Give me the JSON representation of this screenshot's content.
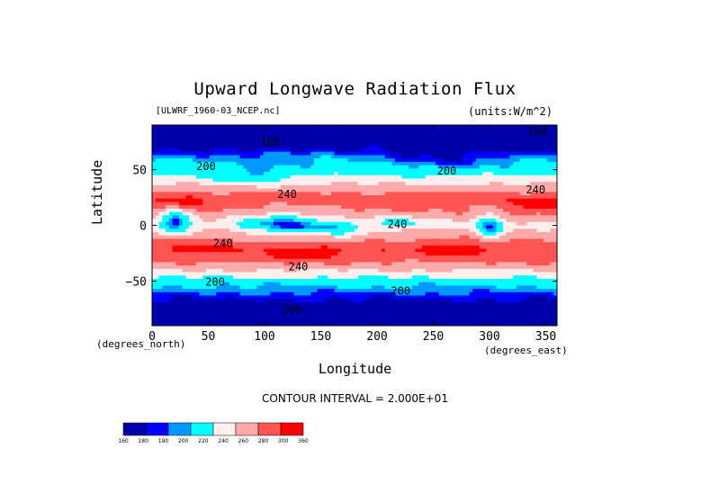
{
  "figure": {
    "title": "Upward Longwave Radiation Flux",
    "file_label": "[ULWRF_1960-03_NCEP.nc]",
    "units_label": "(units:W/m^2)",
    "x_units": "(degrees_east)",
    "y_units": "(degrees_north)",
    "contour_interval": "CONTOUR INTERVAL = 2.000E+01"
  },
  "chart_data": {
    "type": "heatmap",
    "title": "Upward Longwave Radiation Flux",
    "xlabel": "Longitude",
    "ylabel": "Latitude",
    "xlim": [
      0,
      360
    ],
    "ylim": [
      -90,
      90
    ],
    "x_ticks": [
      0,
      50,
      100,
      150,
      200,
      250,
      300,
      350
    ],
    "y_ticks": [
      -50,
      0,
      50
    ],
    "colorbar": {
      "levels": [
        160,
        180,
        190,
        200,
        220,
        240,
        260,
        280,
        300,
        360
      ],
      "colors": [
        "#0000aa",
        "#0000ff",
        "#0099ff",
        "#00ffff",
        "#ffeeee",
        "#ffaaaa",
        "#ff5555",
        "#ff0000"
      ]
    },
    "contour_labels": [
      {
        "text": "160",
        "lon": 105,
        "lat": 75
      },
      {
        "text": "200",
        "lon": 48,
        "lat": 53
      },
      {
        "text": "200",
        "lon": 262,
        "lat": 49
      },
      {
        "text": "240",
        "lon": 120,
        "lat": 28
      },
      {
        "text": "240",
        "lon": 341,
        "lat": 32
      },
      {
        "text": "240",
        "lon": 218,
        "lat": 1
      },
      {
        "text": "240",
        "lon": 63,
        "lat": -16
      },
      {
        "text": "240",
        "lon": 130,
        "lat": -37
      },
      {
        "text": "200",
        "lon": 56,
        "lat": -51
      },
      {
        "text": "200",
        "lon": 221,
        "lat": -59
      },
      {
        "text": "160",
        "lon": 124,
        "lat": -76
      },
      {
        "text": "160",
        "lon": 342,
        "lat": 84
      }
    ],
    "zonal_profile": [
      {
        "lat": 88,
        "value": 165
      },
      {
        "lat": 75,
        "value": 170
      },
      {
        "lat": 62,
        "value": 195
      },
      {
        "lat": 50,
        "value": 212
      },
      {
        "lat": 40,
        "value": 232
      },
      {
        "lat": 25,
        "value": 272
      },
      {
        "lat": 12,
        "value": 258
      },
      {
        "lat": 0,
        "value": 232
      },
      {
        "lat": -10,
        "value": 255
      },
      {
        "lat": -22,
        "value": 276
      },
      {
        "lat": -32,
        "value": 264
      },
      {
        "lat": -42,
        "value": 235
      },
      {
        "lat": -52,
        "value": 205
      },
      {
        "lat": -62,
        "value": 188
      },
      {
        "lat": -72,
        "value": 170
      },
      {
        "lat": -82,
        "value": 158
      },
      {
        "lat": -90,
        "value": 150
      }
    ],
    "anomalies": [
      {
        "lon": 20,
        "lat": 5,
        "r_lon": 14,
        "r_lat": 12,
        "delta": -55
      },
      {
        "lon": 115,
        "lat": 2,
        "r_lon": 35,
        "r_lat": 10,
        "delta": -45
      },
      {
        "lon": 160,
        "lat": -4,
        "r_lon": 30,
        "r_lat": 8,
        "delta": -30
      },
      {
        "lon": 300,
        "lat": -2,
        "r_lon": 12,
        "r_lat": 12,
        "delta": -45
      },
      {
        "lon": 220,
        "lat": 3,
        "r_lon": 25,
        "r_lat": 5,
        "delta": -25
      },
      {
        "lon": 25,
        "lat": 20,
        "r_lon": 20,
        "r_lat": 7,
        "delta": 25
      },
      {
        "lon": 340,
        "lat": 17,
        "r_lon": 25,
        "r_lat": 8,
        "delta": 22
      },
      {
        "lon": 45,
        "lat": -20,
        "r_lon": 25,
        "r_lat": 7,
        "delta": 15
      },
      {
        "lon": 135,
        "lat": -25,
        "r_lon": 30,
        "r_lat": 7,
        "delta": 22
      },
      {
        "lon": 270,
        "lat": -20,
        "r_lon": 30,
        "r_lat": 7,
        "delta": 18
      },
      {
        "lon": 90,
        "lat": 45,
        "r_lon": 40,
        "r_lat": 10,
        "delta": -20
      },
      {
        "lon": 260,
        "lat": 60,
        "r_lon": 50,
        "r_lat": 12,
        "delta": -18
      },
      {
        "lon": 80,
        "lat": 75,
        "r_lon": 70,
        "r_lat": 10,
        "delta": -10
      },
      {
        "lon": 320,
        "lat": 78,
        "r_lon": 30,
        "r_lat": 10,
        "delta": -12
      }
    ]
  }
}
